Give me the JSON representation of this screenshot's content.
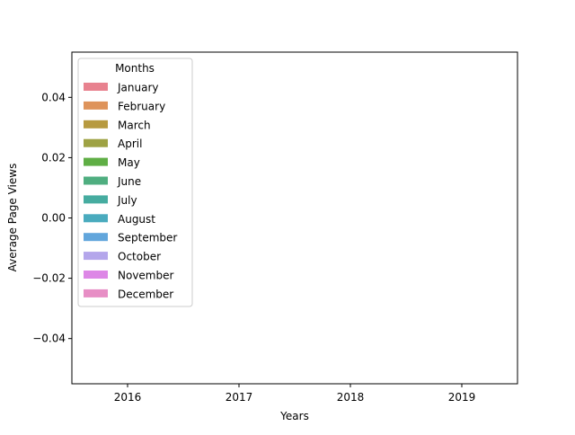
{
  "chart_data": {
    "type": "bar",
    "title": "",
    "xlabel": "Years",
    "ylabel": "Average Page Views",
    "categories": [
      "2016",
      "2017",
      "2018",
      "2019"
    ],
    "ylim": [
      -0.055,
      0.055
    ],
    "yticks": [
      -0.04,
      -0.02,
      0.0,
      0.02,
      0.04
    ],
    "ytick_labels": [
      "−0.04",
      "−0.02",
      "0.00",
      "0.02",
      "0.04"
    ],
    "grid": false,
    "legend": {
      "title": "Months",
      "placement": "top-left",
      "entries": [
        {
          "name": "January",
          "color": "#e8828f"
        },
        {
          "name": "February",
          "color": "#de935a"
        },
        {
          "name": "March",
          "color": "#b79a40"
        },
        {
          "name": "April",
          "color": "#9ea244"
        },
        {
          "name": "May",
          "color": "#5fae45"
        },
        {
          "name": "June",
          "color": "#4fae80"
        },
        {
          "name": "July",
          "color": "#46aca0"
        },
        {
          "name": "August",
          "color": "#4aabbe"
        },
        {
          "name": "September",
          "color": "#62a6dc"
        },
        {
          "name": "October",
          "color": "#b4a6eb"
        },
        {
          "name": "November",
          "color": "#dd87e6"
        },
        {
          "name": "December",
          "color": "#e78ec5"
        }
      ]
    },
    "series": [
      {
        "name": "January",
        "values": [
          null,
          null,
          null,
          null
        ]
      },
      {
        "name": "February",
        "values": [
          null,
          null,
          null,
          null
        ]
      },
      {
        "name": "March",
        "values": [
          null,
          null,
          null,
          null
        ]
      },
      {
        "name": "April",
        "values": [
          null,
          null,
          null,
          null
        ]
      },
      {
        "name": "May",
        "values": [
          null,
          null,
          null,
          null
        ]
      },
      {
        "name": "June",
        "values": [
          null,
          null,
          null,
          null
        ]
      },
      {
        "name": "July",
        "values": [
          null,
          null,
          null,
          null
        ]
      },
      {
        "name": "August",
        "values": [
          null,
          null,
          null,
          null
        ]
      },
      {
        "name": "September",
        "values": [
          null,
          null,
          null,
          null
        ]
      },
      {
        "name": "October",
        "values": [
          null,
          null,
          null,
          null
        ]
      },
      {
        "name": "November",
        "values": [
          null,
          null,
          null,
          null
        ]
      },
      {
        "name": "December",
        "values": [
          null,
          null,
          null,
          null
        ]
      }
    ]
  }
}
